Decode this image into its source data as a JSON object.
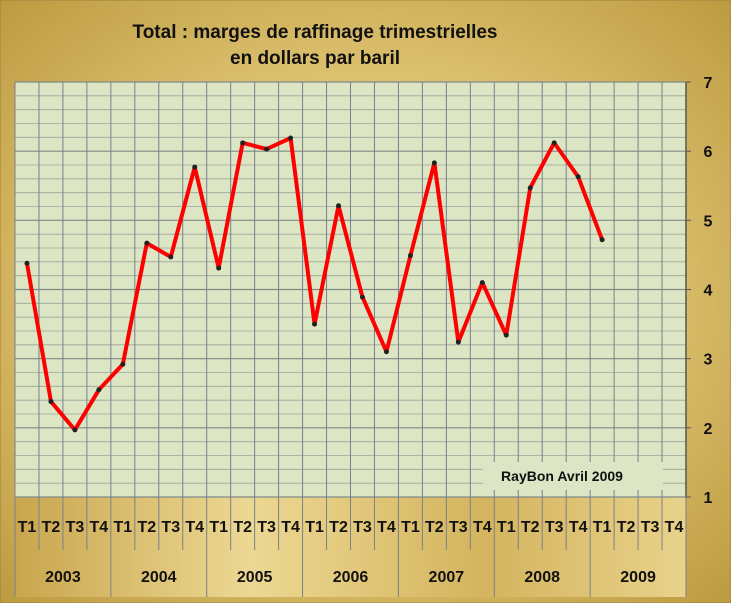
{
  "chart_data": {
    "type": "line",
    "title": [
      "Total : marges de raffinage trimestrielles",
      "en dollars par baril"
    ],
    "xlabel": "",
    "ylabel": "",
    "ylim": [
      1,
      7
    ],
    "yticks": [
      "1",
      "2",
      "3",
      "4",
      "5",
      "6",
      "7"
    ],
    "quarters": [
      "T1",
      "T2",
      "T3",
      "T4"
    ],
    "years": [
      "2003",
      "2004",
      "2005",
      "2006",
      "2007",
      "2008",
      "2009"
    ],
    "grid": true,
    "series": [
      {
        "name": "Total",
        "color": "#ff0000",
        "values": [
          4.38,
          2.38,
          1.97,
          2.55,
          2.92,
          4.67,
          4.47,
          5.77,
          4.31,
          6.12,
          6.03,
          6.19,
          3.5,
          5.21,
          3.89,
          3.1,
          4.49,
          5.83,
          3.24,
          4.1,
          3.34,
          5.47,
          6.12,
          5.63,
          4.72
        ]
      }
    ],
    "annotation": "RayBon Avril 2009"
  }
}
